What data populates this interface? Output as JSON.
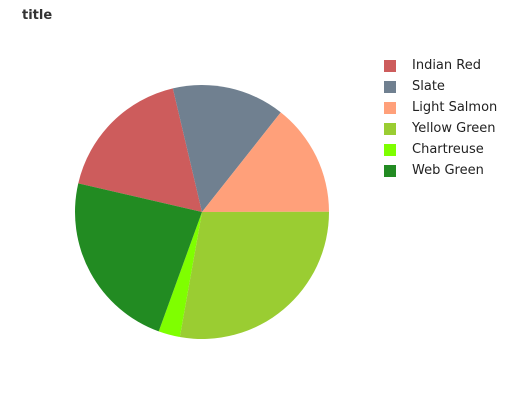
{
  "chart_data": {
    "type": "pie",
    "title": "title",
    "slices": [
      {
        "name": "Indian Red",
        "value": 16.8,
        "color": "#cd5c5c"
      },
      {
        "name": "Slate",
        "value": 13.6,
        "color": "#708090"
      },
      {
        "name": "Light Salmon",
        "value": 13.6,
        "color": "#ffa07a"
      },
      {
        "name": "Yellow Green",
        "value": 26.4,
        "color": "#9acd32"
      },
      {
        "name": "Chartreuse",
        "value": 2.6,
        "color": "#7fff00"
      },
      {
        "name": "Web Green",
        "value": 21.9,
        "color": "#228b22"
      }
    ],
    "legend_position": "right"
  }
}
